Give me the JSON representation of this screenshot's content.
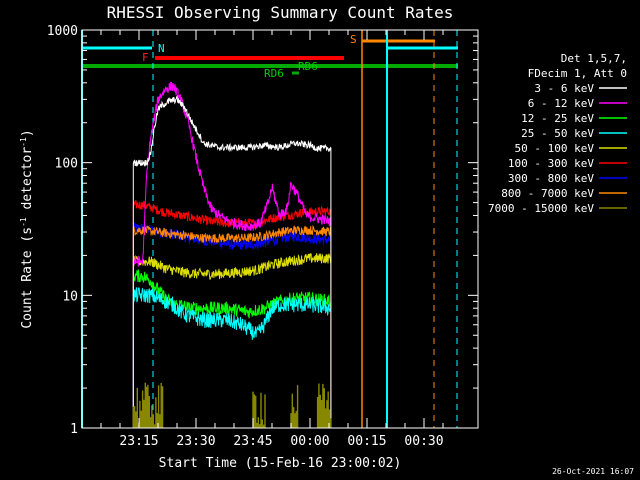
{
  "chart_data": {
    "type": "line",
    "title": "RHESSI Observing Summary Count Rates",
    "xlabel": "Start Time (15-Feb-16 23:00:02)",
    "ylabel_main": "Count Rate (s",
    "ylabel_sup1": "-1",
    "ylabel_mid": " detector",
    "ylabel_sup2": "-1",
    "ylabel_end": ")",
    "timestamp": "26-Oct-2021 16:07",
    "x_range_min": [
      0,
      65
    ],
    "y_range": [
      1,
      1000
    ],
    "y_scale": "log",
    "xticks": [
      {
        "t": 15,
        "label": "23:15"
      },
      {
        "t": 30,
        "label": "23:30"
      },
      {
        "t": 45,
        "label": "23:45"
      },
      {
        "t": 60,
        "label": "00:00"
      },
      {
        "t": 75,
        "label": "00:15"
      },
      {
        "t": 90,
        "label": "00:30"
      }
    ],
    "yticks": [
      {
        "v": 1,
        "label": "1"
      },
      {
        "v": 10,
        "label": "10"
      },
      {
        "v": 100,
        "label": "100"
      },
      {
        "v": 1000,
        "label": "1000"
      }
    ],
    "legend": {
      "header1": "Det 1,5,7,",
      "header2": "FDecim 1, Att 0",
      "entries": [
        {
          "label": "3 - 6 keV",
          "color": "#ffffff"
        },
        {
          "label": "6 - 12 keV",
          "color": "#ff00ff"
        },
        {
          "label": "12 - 25 keV",
          "color": "#00ff00"
        },
        {
          "label": "25 - 50 keV",
          "color": "#00ffff"
        },
        {
          "label": "50 - 100 keV",
          "color": "#dddd00"
        },
        {
          "label": "100 - 300 keV",
          "color": "#ff0000"
        },
        {
          "label": "300 - 800 keV",
          "color": "#0000ff"
        },
        {
          "label": "800 - 7000 keV",
          "color": "#ff8800"
        },
        {
          "label": "7000 - 15000 keV",
          "color": "#888800"
        }
      ]
    },
    "flags": {
      "N_label": "N",
      "F_label": "F",
      "S_label": "S",
      "RD_label_a": "RD6",
      "RD_label_b": "RD6"
    },
    "series": [
      {
        "name": "3 - 6 keV",
        "color": "#ffffff",
        "t": [
          13.5,
          17,
          18,
          19,
          20,
          21,
          23,
          25,
          27,
          29,
          31,
          32,
          34,
          36,
          40,
          44,
          48,
          52,
          56,
          60,
          62,
          65.5
        ],
        "v": [
          100,
          100,
          115,
          180,
          250,
          270,
          290,
          300,
          260,
          200,
          160,
          140,
          135,
          130,
          130,
          130,
          135,
          130,
          140,
          135,
          128,
          128
        ]
      },
      {
        "name": "6 - 12 keV",
        "color": "#ff00ff",
        "t": [
          13.5,
          16,
          17,
          18,
          20,
          22,
          24,
          26,
          28,
          30,
          32,
          34,
          36,
          38,
          40,
          44,
          47,
          49,
          50,
          52,
          54,
          55,
          57,
          59,
          62,
          65.5
        ],
        "v": [
          18,
          18,
          80,
          150,
          300,
          360,
          380,
          300,
          200,
          110,
          65,
          45,
          40,
          37,
          35,
          33,
          35,
          50,
          65,
          40,
          45,
          70,
          55,
          40,
          38,
          36
        ]
      },
      {
        "name": "12 - 25 keV",
        "color": "#00ff00",
        "t": [
          13.5,
          16,
          18,
          20,
          22,
          24,
          26,
          28,
          30,
          34,
          38,
          44,
          48,
          52,
          56,
          60,
          65.5
        ],
        "v": [
          14,
          14,
          13,
          11,
          9.5,
          8.5,
          8.5,
          8,
          8,
          8,
          8,
          7.5,
          8,
          9,
          9.5,
          9.5,
          9
        ]
      },
      {
        "name": "25 - 50 keV",
        "color": "#00ffff",
        "t": [
          13.5,
          16,
          18,
          20,
          22,
          24,
          26,
          28,
          32,
          38,
          42,
          44,
          46,
          48,
          50,
          52,
          56,
          60,
          65.5
        ],
        "v": [
          10,
          10,
          10,
          9.5,
          9,
          8.5,
          7.5,
          7,
          6.5,
          6.5,
          6,
          5.5,
          5,
          6,
          8,
          8.5,
          8.5,
          8.5,
          8
        ]
      },
      {
        "name": "50 - 100 keV",
        "color": "#dddd00",
        "t": [
          13.5,
          16,
          18,
          20,
          22,
          26,
          30,
          36,
          42,
          46,
          50,
          54,
          60,
          65.5
        ],
        "v": [
          18,
          18,
          18,
          17,
          16,
          15,
          14.5,
          14.5,
          15,
          15.5,
          17,
          18,
          19,
          19
        ]
      },
      {
        "name": "100 - 300 keV",
        "color": "#ff0000",
        "t": [
          13.5,
          16,
          18,
          20,
          22,
          26,
          30,
          34,
          38,
          42,
          46,
          50,
          54,
          58,
          62,
          65.5
        ],
        "v": [
          48,
          48,
          46,
          44,
          42,
          40,
          38,
          36,
          35,
          35,
          35,
          38,
          40,
          42,
          43,
          43
        ]
      },
      {
        "name": "300 - 800 keV",
        "color": "#0000ff",
        "t": [
          13.5,
          16,
          20,
          24,
          28,
          32,
          36,
          40,
          44,
          48,
          52,
          56,
          60,
          65.5
        ],
        "v": [
          32,
          32,
          30,
          29,
          27,
          26,
          25,
          24,
          24,
          25,
          27,
          28,
          27,
          26
        ]
      },
      {
        "name": "800 - 7000 keV",
        "color": "#ff8800",
        "t": [
          13.5,
          16,
          20,
          24,
          28,
          32,
          36,
          40,
          44,
          48,
          52,
          56,
          60,
          65.5
        ],
        "v": [
          31,
          31,
          30,
          29,
          28,
          27,
          27,
          27,
          27,
          28,
          30,
          31,
          31,
          30
        ]
      }
    ]
  }
}
